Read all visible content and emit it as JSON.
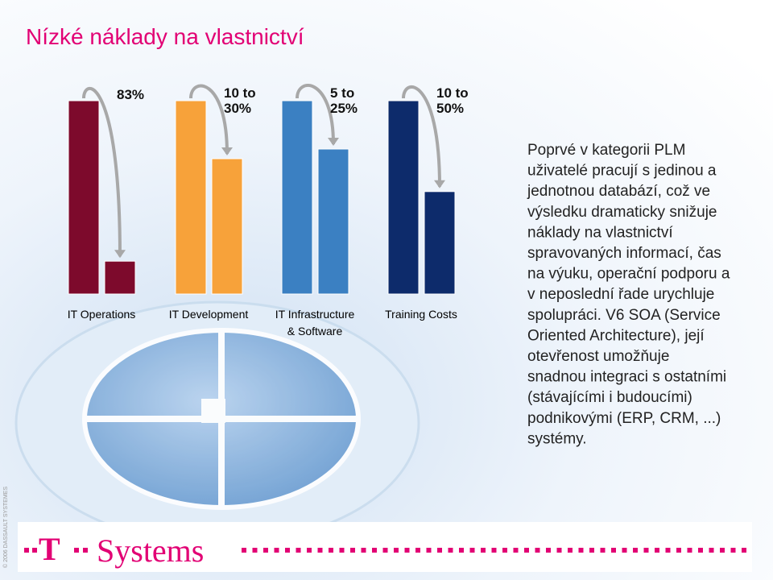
{
  "header": {
    "title": "Nízké náklady na vlastnictví"
  },
  "chart_data": {
    "type": "bar",
    "categories": [
      [
        "IT Operations"
      ],
      [
        "IT Development"
      ],
      [
        "IT Infrastructure",
        "& Software"
      ],
      [
        "Training Costs"
      ]
    ],
    "colors": [
      "#7d0a2c",
      "#f7a23a",
      "#3b80c2",
      "#0d2b6b"
    ],
    "series": [
      {
        "values": [
          100,
          100,
          100,
          100
        ]
      },
      {
        "values": [
          17,
          70,
          75,
          53
        ]
      }
    ],
    "annotations": [
      [
        "83%"
      ],
      [
        "10 to",
        "30%"
      ],
      [
        "5 to",
        "25%"
      ],
      [
        "10 to",
        "50%"
      ]
    ],
    "ylim": [
      0,
      100
    ]
  },
  "body": {
    "lines": [
      "Poprvé v kategorii PLM",
      "uživatelé pracují s jedinou a",
      "jednotnou databází, což ve",
      "výsledku dramaticky snižuje",
      "náklady na vlastnictví",
      "spravovaných informací, čas",
      "na výuku, operační podporu a",
      "v neposlední řade urychluje",
      "spolupráci. V6 SOA (Service",
      "Oriented Architecture), její",
      "otevřenost umožňuje",
      "snadnou integraci s ostatními",
      "(stávajícími i budoucími)",
      "podnikovými (ERP, CRM, ...)",
      "systémy."
    ]
  },
  "footer": {
    "logo_mark": "T",
    "logo_text": "Systems",
    "side_note": "© 2006 DASSAULT SYSTEMES"
  }
}
